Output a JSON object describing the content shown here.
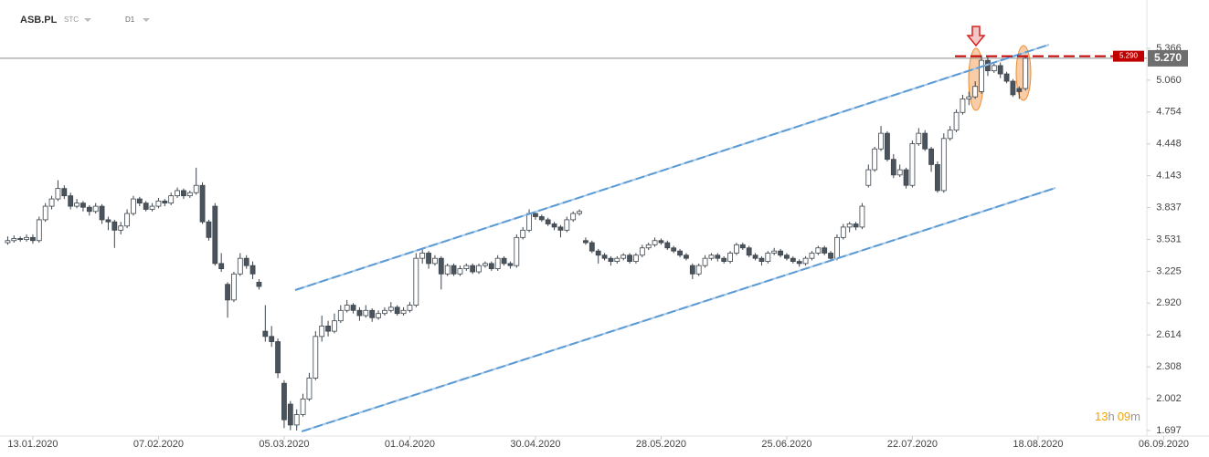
{
  "chart_data": {
    "type": "candlestick",
    "title": "ASB.PL",
    "source": "STC",
    "interval": "D1",
    "timer": [
      "13",
      "h",
      "09",
      "m"
    ],
    "up_color": "#ffffff",
    "down_color": "#4b545c",
    "outline_color": "#3c444c",
    "trendline_color": "#5b9bd5",
    "alert_color": "#c00000",
    "price_color": "#6e6e6e",
    "grid": false,
    "ylim": [
      1.644,
      5.672
    ],
    "yticks": [
      1.697,
      2.002,
      2.308,
      2.614,
      {
        "value": 2.92,
        "label": "2.920"
      },
      3.225,
      3.531,
      3.837,
      4.143,
      4.448,
      4.754,
      {
        "value": 5.06,
        "label": "5.060"
      },
      5.366
    ],
    "xlim": [
      -0.5,
      186
    ],
    "xticks": [
      {
        "value": 4,
        "label": "13.01.2020"
      },
      {
        "value": 24,
        "label": "07.02.2020"
      },
      {
        "value": 44,
        "label": "05.03.2020"
      },
      {
        "value": 64,
        "label": "01.04.2020"
      },
      {
        "value": 84,
        "label": "30.04.2020"
      },
      {
        "value": 104,
        "label": "28.05.2020"
      },
      {
        "value": 124,
        "label": "25.06.2020"
      },
      {
        "value": 144,
        "label": "22.07.2020"
      },
      {
        "value": 164,
        "label": "18.08.2020"
      },
      {
        "value": 184,
        "label": "06.09.2020"
      }
    ],
    "price_line": {
      "value": 5.27,
      "label": "5.270"
    },
    "alert_line": {
      "value": 5.29,
      "label": "5.290"
    },
    "trendlines": [
      {
        "points": [
          [
            45.75,
            3.045
          ],
          [
            165.75,
            5.401
          ]
        ]
      },
      {
        "points": [
          [
            46.8,
            1.688
          ],
          [
            166.8,
            4.026
          ]
        ]
      }
    ],
    "ohlc": [
      [
        3.5,
        3.56,
        3.48,
        3.52
      ],
      [
        3.52,
        3.57,
        3.5,
        3.54
      ],
      [
        3.54,
        3.56,
        3.51,
        3.53
      ],
      [
        3.53,
        3.58,
        3.51,
        3.55
      ],
      [
        3.55,
        3.58,
        3.49,
        3.52
      ],
      [
        3.52,
        3.75,
        3.5,
        3.72
      ],
      [
        3.72,
        3.88,
        3.7,
        3.85
      ],
      [
        3.85,
        3.95,
        3.82,
        3.92
      ],
      [
        3.92,
        4.1,
        3.9,
        4.02
      ],
      [
        4.02,
        4.05,
        3.92,
        3.95
      ],
      [
        3.95,
        3.98,
        3.82,
        3.85
      ],
      [
        3.85,
        3.92,
        3.83,
        3.88
      ],
      [
        3.88,
        3.9,
        3.8,
        3.84
      ],
      [
        3.84,
        3.86,
        3.76,
        3.8
      ],
      [
        3.8,
        3.88,
        3.78,
        3.85
      ],
      [
        3.85,
        3.87,
        3.68,
        3.72
      ],
      [
        3.72,
        3.75,
        3.62,
        3.7
      ],
      [
        3.7,
        3.72,
        3.45,
        3.62
      ],
      [
        3.62,
        3.7,
        3.58,
        3.66
      ],
      [
        3.66,
        3.82,
        3.64,
        3.78
      ],
      [
        3.78,
        3.95,
        3.76,
        3.92
      ],
      [
        3.92,
        3.94,
        3.85,
        3.88
      ],
      [
        3.88,
        3.9,
        3.8,
        3.82
      ],
      [
        3.82,
        3.88,
        3.8,
        3.85
      ],
      [
        3.85,
        3.93,
        3.83,
        3.9
      ],
      [
        3.9,
        3.92,
        3.85,
        3.88
      ],
      [
        3.88,
        3.98,
        3.86,
        3.95
      ],
      [
        3.95,
        4.03,
        3.93,
        4.0
      ],
      [
        4.0,
        4.02,
        3.92,
        3.95
      ],
      [
        3.95,
        4.0,
        3.93,
        3.98
      ],
      [
        3.98,
        4.22,
        3.96,
        4.05
      ],
      [
        4.05,
        4.08,
        3.68,
        3.7
      ],
      [
        3.7,
        3.72,
        3.52,
        3.55
      ],
      [
        3.85,
        3.88,
        3.28,
        3.3
      ],
      [
        3.3,
        3.4,
        3.22,
        3.25
      ],
      [
        3.1,
        3.12,
        2.78,
        2.95
      ],
      [
        2.95,
        3.22,
        2.93,
        3.2
      ],
      [
        3.2,
        3.4,
        3.18,
        3.35
      ],
      [
        3.35,
        3.38,
        3.25,
        3.28
      ],
      [
        3.28,
        3.32,
        3.15,
        3.2
      ],
      [
        3.12,
        3.15,
        3.05,
        3.08
      ],
      [
        2.65,
        2.9,
        2.55,
        2.6
      ],
      [
        2.6,
        2.7,
        2.5,
        2.55
      ],
      [
        2.55,
        2.58,
        2.2,
        2.25
      ],
      [
        2.15,
        2.18,
        1.72,
        1.8
      ],
      [
        1.95,
        1.98,
        1.7,
        1.75
      ],
      [
        1.75,
        1.9,
        1.697,
        1.85
      ],
      [
        1.85,
        2.05,
        1.83,
        2.0
      ],
      [
        2.0,
        2.25,
        1.98,
        2.2
      ],
      [
        2.2,
        2.65,
        2.18,
        2.6
      ],
      [
        2.6,
        2.8,
        2.55,
        2.7
      ],
      [
        2.7,
        2.75,
        2.6,
        2.65
      ],
      [
        2.65,
        2.82,
        2.63,
        2.75
      ],
      [
        2.75,
        2.9,
        2.73,
        2.85
      ],
      [
        2.85,
        2.95,
        2.83,
        2.9
      ],
      [
        2.9,
        2.92,
        2.82,
        2.85
      ],
      [
        2.85,
        2.88,
        2.75,
        2.8
      ],
      [
        2.8,
        2.9,
        2.78,
        2.85
      ],
      [
        2.85,
        2.87,
        2.74,
        2.78
      ],
      [
        2.78,
        2.85,
        2.76,
        2.82
      ],
      [
        2.82,
        2.88,
        2.8,
        2.85
      ],
      [
        2.85,
        2.93,
        2.83,
        2.88
      ],
      [
        2.88,
        2.9,
        2.8,
        2.82
      ],
      [
        2.82,
        2.88,
        2.8,
        2.85
      ],
      [
        2.85,
        2.93,
        2.83,
        2.9
      ],
      [
        2.9,
        3.4,
        2.88,
        3.35
      ],
      [
        3.35,
        3.45,
        3.3,
        3.4
      ],
      [
        3.4,
        3.42,
        3.25,
        3.3
      ],
      [
        3.3,
        3.38,
        3.28,
        3.35
      ],
      [
        3.35,
        3.37,
        3.05,
        3.2
      ],
      [
        3.2,
        3.3,
        3.18,
        3.28
      ],
      [
        3.28,
        3.3,
        3.18,
        3.2
      ],
      [
        3.2,
        3.28,
        3.18,
        3.25
      ],
      [
        3.25,
        3.3,
        3.23,
        3.28
      ],
      [
        3.28,
        3.3,
        3.2,
        3.22
      ],
      [
        3.22,
        3.3,
        3.2,
        3.28
      ],
      [
        3.28,
        3.32,
        3.26,
        3.3
      ],
      [
        3.3,
        3.32,
        3.23,
        3.25
      ],
      [
        3.25,
        3.38,
        3.23,
        3.35
      ],
      [
        3.35,
        3.37,
        3.28,
        3.3
      ],
      [
        3.3,
        3.32,
        3.25,
        3.28
      ],
      [
        3.28,
        3.58,
        3.26,
        3.55
      ],
      [
        3.55,
        3.65,
        3.53,
        3.62
      ],
      [
        3.62,
        3.82,
        3.6,
        3.78
      ],
      [
        3.78,
        3.8,
        3.72,
        3.75
      ],
      [
        3.75,
        3.77,
        3.7,
        3.72
      ],
      [
        3.72,
        3.74,
        3.66,
        3.68
      ],
      [
        3.68,
        3.7,
        3.62,
        3.65
      ],
      [
        3.65,
        3.67,
        3.55,
        3.62
      ],
      [
        3.62,
        3.75,
        3.6,
        3.72
      ],
      [
        3.72,
        3.8,
        3.7,
        3.78
      ],
      [
        3.78,
        3.82,
        3.76,
        3.8
      ],
      [
        3.52,
        3.55,
        3.48,
        3.5
      ],
      [
        3.5,
        3.52,
        3.4,
        3.42
      ],
      [
        3.42,
        3.44,
        3.3,
        3.38
      ],
      [
        3.38,
        3.4,
        3.33,
        3.35
      ],
      [
        3.35,
        3.37,
        3.28,
        3.32
      ],
      [
        3.32,
        3.37,
        3.3,
        3.35
      ],
      [
        3.35,
        3.4,
        3.33,
        3.38
      ],
      [
        3.38,
        3.4,
        3.3,
        3.32
      ],
      [
        3.32,
        3.4,
        3.3,
        3.38
      ],
      [
        3.38,
        3.48,
        3.36,
        3.45
      ],
      [
        3.45,
        3.5,
        3.43,
        3.48
      ],
      [
        3.48,
        3.55,
        3.46,
        3.52
      ],
      [
        3.52,
        3.54,
        3.48,
        3.5
      ],
      [
        3.5,
        3.52,
        3.43,
        3.45
      ],
      [
        3.45,
        3.47,
        3.4,
        3.42
      ],
      [
        3.42,
        3.44,
        3.36,
        3.38
      ],
      [
        3.38,
        3.4,
        3.33,
        3.35
      ],
      [
        3.28,
        3.3,
        3.15,
        3.2
      ],
      [
        3.2,
        3.3,
        3.18,
        3.28
      ],
      [
        3.28,
        3.38,
        3.26,
        3.35
      ],
      [
        3.35,
        3.4,
        3.33,
        3.38
      ],
      [
        3.38,
        3.4,
        3.32,
        3.35
      ],
      [
        3.35,
        3.37,
        3.3,
        3.32
      ],
      [
        3.32,
        3.42,
        3.3,
        3.4
      ],
      [
        3.4,
        3.5,
        3.38,
        3.48
      ],
      [
        3.48,
        3.5,
        3.43,
        3.45
      ],
      [
        3.45,
        3.47,
        3.36,
        3.38
      ],
      [
        3.38,
        3.4,
        3.33,
        3.35
      ],
      [
        3.35,
        3.37,
        3.28,
        3.32
      ],
      [
        3.32,
        3.42,
        3.3,
        3.4
      ],
      [
        3.4,
        3.45,
        3.38,
        3.42
      ],
      [
        3.42,
        3.44,
        3.36,
        3.38
      ],
      [
        3.38,
        3.4,
        3.33,
        3.35
      ],
      [
        3.35,
        3.37,
        3.3,
        3.32
      ],
      [
        3.32,
        3.34,
        3.27,
        3.3
      ],
      [
        3.3,
        3.37,
        3.28,
        3.35
      ],
      [
        3.35,
        3.42,
        3.33,
        3.4
      ],
      [
        3.4,
        3.47,
        3.38,
        3.45
      ],
      [
        3.45,
        3.47,
        3.38,
        3.4
      ],
      [
        3.4,
        3.42,
        3.33,
        3.35
      ],
      [
        3.35,
        3.58,
        3.33,
        3.55
      ],
      [
        3.55,
        3.68,
        3.53,
        3.65
      ],
      [
        3.65,
        3.7,
        3.6,
        3.68
      ],
      [
        3.68,
        3.7,
        3.62,
        3.65
      ],
      [
        3.65,
        3.88,
        3.63,
        3.85
      ],
      [
        4.05,
        4.25,
        4.03,
        4.2
      ],
      [
        4.2,
        4.42,
        4.18,
        4.4
      ],
      [
        4.4,
        4.62,
        4.38,
        4.55
      ],
      [
        4.55,
        4.57,
        4.28,
        4.3
      ],
      [
        4.3,
        4.35,
        4.12,
        4.15
      ],
      [
        4.15,
        4.25,
        4.13,
        4.2
      ],
      [
        4.2,
        4.22,
        4.02,
        4.05
      ],
      [
        4.05,
        4.48,
        4.03,
        4.45
      ],
      [
        4.45,
        4.6,
        4.43,
        4.55
      ],
      [
        4.55,
        4.58,
        4.38,
        4.4
      ],
      [
        4.4,
        4.42,
        4.18,
        4.25
      ],
      [
        4.25,
        4.28,
        3.98,
        4.0
      ],
      [
        4.0,
        4.55,
        3.98,
        4.5
      ],
      [
        4.5,
        4.62,
        4.48,
        4.58
      ],
      [
        4.58,
        4.78,
        4.56,
        4.75
      ],
      [
        4.75,
        4.92,
        4.73,
        4.88
      ],
      [
        4.88,
        4.95,
        4.82,
        4.9
      ],
      [
        4.9,
        5.05,
        4.88,
        5.0
      ],
      [
        4.95,
        5.3,
        4.93,
        5.25
      ],
      [
        5.25,
        5.28,
        5.1,
        5.15
      ],
      [
        5.15,
        5.22,
        5.13,
        5.2
      ],
      [
        5.2,
        5.23,
        5.08,
        5.12
      ],
      [
        5.12,
        5.14,
        5.03,
        5.05
      ],
      [
        5.05,
        5.07,
        4.9,
        4.92
      ],
      [
        4.98,
        5.0,
        4.88,
        4.95
      ],
      [
        4.98,
        5.3,
        4.96,
        5.27
      ]
    ]
  }
}
